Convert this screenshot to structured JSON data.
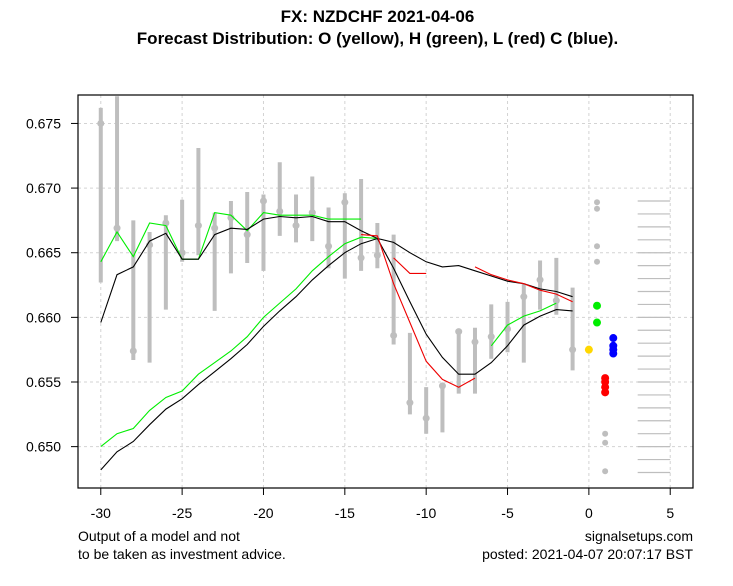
{
  "chart_data": {
    "type": "line",
    "title": "FX: NZDCHF 2021-04-06",
    "subtitle": "Forecast Distribution: O (yellow), H (green), L (red) C (blue).",
    "xlabel": "",
    "ylabel": "",
    "xlim": [
      -31.4,
      6.4
    ],
    "ylim": [
      0.6468,
      0.6772
    ],
    "grid": true,
    "x_ticks": [
      -30,
      -25,
      -20,
      -15,
      -10,
      -5,
      0,
      5
    ],
    "x_tick_labels": [
      "-30",
      "-25",
      "-20",
      "-15",
      "-10",
      "-5",
      "0",
      "5"
    ],
    "y_ticks": [
      0.65,
      0.655,
      0.66,
      0.665,
      0.67,
      0.675
    ],
    "y_tick_labels": [
      "0.650",
      "0.655",
      "0.660",
      "0.665",
      "0.670",
      "0.675"
    ],
    "candles": [
      {
        "x": -30,
        "high": 0.6762,
        "low": 0.6627,
        "close": 0.675
      },
      {
        "x": -29,
        "high": 0.6771,
        "low": 0.6659,
        "close": 0.6669
      },
      {
        "x": -28,
        "high": 0.6675,
        "low": 0.6567,
        "close": 0.6574
      },
      {
        "x": -27,
        "high": 0.6666,
        "low": 0.6565,
        "close": 0.6656
      },
      {
        "x": -26,
        "high": 0.6679,
        "low": 0.6606,
        "close": 0.6673
      },
      {
        "x": -25,
        "high": 0.6691,
        "low": 0.6643,
        "close": 0.665
      },
      {
        "x": -24,
        "high": 0.6731,
        "low": 0.6648,
        "close": 0.6671
      },
      {
        "x": -23,
        "high": 0.6681,
        "low": 0.6605,
        "close": 0.6669
      },
      {
        "x": -22,
        "high": 0.669,
        "low": 0.6634,
        "close": 0.6677
      },
      {
        "x": -21,
        "high": 0.6697,
        "low": 0.6642,
        "close": 0.6664
      },
      {
        "x": -20,
        "high": 0.6695,
        "low": 0.6636,
        "close": 0.669
      },
      {
        "x": -19,
        "high": 0.672,
        "low": 0.6663,
        "close": 0.6682
      },
      {
        "x": -18,
        "high": 0.6695,
        "low": 0.6658,
        "close": 0.6671
      },
      {
        "x": -17,
        "high": 0.6709,
        "low": 0.6659,
        "close": 0.6681
      },
      {
        "x": -16,
        "high": 0.6685,
        "low": 0.6638,
        "close": 0.6655
      },
      {
        "x": -15,
        "high": 0.6696,
        "low": 0.663,
        "close": 0.6689
      },
      {
        "x": -14,
        "high": 0.6707,
        "low": 0.6636,
        "close": 0.6646
      },
      {
        "x": -13,
        "high": 0.6673,
        "low": 0.6638,
        "close": 0.6648
      },
      {
        "x": -12,
        "high": 0.6664,
        "low": 0.6579,
        "close": 0.6586
      },
      {
        "x": -11,
        "high": 0.6588,
        "low": 0.6525,
        "close": 0.6534
      },
      {
        "x": -10,
        "high": 0.6546,
        "low": 0.651,
        "close": 0.6522
      },
      {
        "x": -9,
        "high": 0.6548,
        "low": 0.6511,
        "close": 0.6547
      },
      {
        "x": -8,
        "high": 0.6591,
        "low": 0.6541,
        "close": 0.6589
      },
      {
        "x": -7,
        "high": 0.6592,
        "low": 0.6541,
        "close": 0.6581
      },
      {
        "x": -6,
        "high": 0.661,
        "low": 0.6568,
        "close": 0.6585
      },
      {
        "x": -5,
        "high": 0.6612,
        "low": 0.6573,
        "close": 0.6591
      },
      {
        "x": -4,
        "high": 0.6626,
        "low": 0.6565,
        "close": 0.6616
      },
      {
        "x": -3,
        "high": 0.6644,
        "low": 0.6606,
        "close": 0.6629
      },
      {
        "x": -2,
        "high": 0.6646,
        "low": 0.6602,
        "close": 0.6613
      },
      {
        "x": -1,
        "high": 0.6623,
        "low": 0.6559,
        "close": 0.6575
      }
    ],
    "series": [
      {
        "name": "upper-green",
        "color": "#00ee00",
        "x": [
          -30,
          -29,
          -28,
          -27,
          -26,
          -25,
          -24,
          -23,
          -22,
          -21,
          -20,
          -19,
          -18,
          -17,
          -16,
          -15,
          -14
        ],
        "values": [
          0.6643,
          0.6666,
          0.6647,
          0.6673,
          0.6671,
          0.6645,
          0.6645,
          0.6681,
          0.6679,
          0.6667,
          0.6681,
          0.6679,
          0.6679,
          0.6679,
          0.6676,
          0.6676,
          0.6676
        ]
      },
      {
        "name": "upper-black",
        "color": "#000000",
        "x": [
          -30,
          -29,
          -28,
          -27,
          -26,
          -25,
          -24,
          -23,
          -22,
          -21,
          -20,
          -19,
          -18,
          -17,
          -16,
          -15,
          -14,
          -13,
          -12,
          -11,
          -10,
          -9,
          -8,
          -7,
          -6,
          -5,
          -4,
          -3,
          -2,
          -1
        ],
        "values": [
          0.6596,
          0.6633,
          0.6639,
          0.6659,
          0.6665,
          0.6645,
          0.6645,
          0.6664,
          0.6669,
          0.6668,
          0.6676,
          0.6678,
          0.6677,
          0.6678,
          0.6674,
          0.6674,
          0.6667,
          0.6661,
          0.6658,
          0.665,
          0.6643,
          0.6639,
          0.664,
          0.6636,
          0.6632,
          0.6628,
          0.6626,
          0.6622,
          0.662,
          0.6616
        ]
      },
      {
        "name": "lower-green",
        "color": "#00ee00",
        "x": [
          -30,
          -29,
          -28,
          -27,
          -26,
          -25,
          -24,
          -23,
          -22,
          -21,
          -20,
          -19,
          -18,
          -17,
          -16,
          -15,
          -14,
          -13
        ],
        "values": [
          0.65,
          0.651,
          0.6514,
          0.6528,
          0.6538,
          0.6543,
          0.6556,
          0.6565,
          0.6574,
          0.6585,
          0.66,
          0.6611,
          0.6622,
          0.6636,
          0.6647,
          0.6657,
          0.6662,
          0.6661
        ]
      },
      {
        "name": "lower-black",
        "color": "#000000",
        "x": [
          -30,
          -29,
          -28,
          -27,
          -26,
          -25,
          -24,
          -23,
          -22,
          -21,
          -20,
          -19,
          -18,
          -17,
          -16,
          -15,
          -14,
          -13,
          -12,
          -11,
          -10,
          -9,
          -8,
          -7,
          -6,
          -5,
          -4,
          -3,
          -2,
          -1
        ],
        "values": [
          0.6482,
          0.6496,
          0.6504,
          0.6517,
          0.6529,
          0.6537,
          0.6548,
          0.6558,
          0.6568,
          0.6579,
          0.6593,
          0.6605,
          0.6616,
          0.6629,
          0.664,
          0.665,
          0.6657,
          0.6661,
          0.6638,
          0.6612,
          0.6587,
          0.6569,
          0.6556,
          0.6556,
          0.6565,
          0.6578,
          0.6594,
          0.6601,
          0.6606,
          0.6605
        ]
      },
      {
        "name": "lower-red",
        "color": "#ee0000",
        "x": [
          -14,
          -13,
          -12,
          -11,
          -10,
          -9,
          -8,
          -7
        ],
        "values": [
          0.6664,
          0.6663,
          0.6626,
          0.6596,
          0.6566,
          0.6552,
          0.6546,
          0.6553
        ]
      },
      {
        "name": "upper-red-a",
        "color": "#ee0000",
        "x": [
          -12,
          -11,
          -10
        ],
        "values": [
          0.6646,
          0.6634,
          0.6634
        ]
      },
      {
        "name": "upper-red-b",
        "color": "#ee0000",
        "x": [
          -7,
          -6,
          -5,
          -4,
          -3,
          -2,
          -1
        ],
        "values": [
          0.6639,
          0.6633,
          0.6629,
          0.6626,
          0.6621,
          0.6618,
          0.6612
        ]
      },
      {
        "name": "right-green",
        "color": "#00ee00",
        "x": [
          -6,
          -5,
          -4,
          -3,
          -2
        ],
        "values": [
          0.6578,
          0.6594,
          0.6601,
          0.6605,
          0.6611
        ]
      }
    ],
    "forecast_points": [
      {
        "group": "O",
        "color": "#ffd700",
        "x": 0,
        "values": [
          0.6575
        ]
      },
      {
        "group": "H",
        "color": "#00ee00",
        "x": 0.5,
        "values": [
          0.6609,
          0.6596
        ]
      },
      {
        "group": "H-gray",
        "color": "#bebebe",
        "x": 0.5,
        "values": [
          0.6689,
          0.6684,
          0.6655,
          0.6643
        ]
      },
      {
        "group": "L",
        "color": "#ff0000",
        "x": 1.0,
        "values": [
          0.6553,
          0.655,
          0.6546,
          0.6542
        ]
      },
      {
        "group": "L-gray",
        "color": "#bebebe",
        "x": 1.0,
        "values": [
          0.651,
          0.6503,
          0.6481
        ]
      },
      {
        "group": "C",
        "color": "#0000ff",
        "x": 1.5,
        "values": [
          0.6584,
          0.6578,
          0.6575,
          0.6572
        ]
      }
    ],
    "level_ticks": {
      "color": "#bebebe",
      "x_range": [
        3,
        5
      ],
      "values": [
        0.669,
        0.668,
        0.667,
        0.666,
        0.665,
        0.664,
        0.663,
        0.662,
        0.661,
        0.66,
        0.659,
        0.658,
        0.657,
        0.656,
        0.655,
        0.654,
        0.653,
        0.652,
        0.651,
        0.65,
        0.649,
        0.648
      ]
    }
  },
  "footer": {
    "disclaimer_line1": "Output of a model and not",
    "disclaimer_line2": "to be taken as investment advice.",
    "site": "signalsetups.com",
    "posted": "posted: 2021-04-07 20:07:17 BST"
  }
}
